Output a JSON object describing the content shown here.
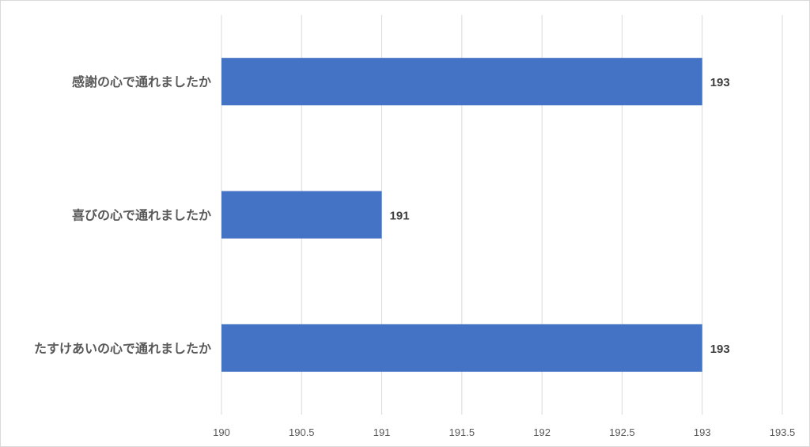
{
  "chart_data": {
    "type": "bar",
    "orientation": "horizontal",
    "title": "",
    "xlabel": "",
    "ylabel": "",
    "categories": [
      "感謝の心で通れましたか",
      "喜びの心で通れましたか",
      "たすけあいの心で通れましたか"
    ],
    "values": [
      193,
      191,
      193
    ],
    "data_labels": [
      "193",
      "191",
      "193"
    ],
    "xlim": [
      190,
      193.5
    ],
    "x_ticks": [
      190,
      190.5,
      191,
      191.5,
      192,
      192.5,
      193,
      193.5
    ],
    "x_tick_labels": [
      "190",
      "190.5",
      "191",
      "191.5",
      "192",
      "192.5",
      "193",
      "193.5"
    ],
    "grid": "vertical",
    "legend": "none",
    "colors": {
      "bar": "#4472c4",
      "gridline": "#d9d9d9",
      "category_text": "#595959",
      "tick_text": "#595959",
      "data_label_text": "#404040"
    }
  }
}
